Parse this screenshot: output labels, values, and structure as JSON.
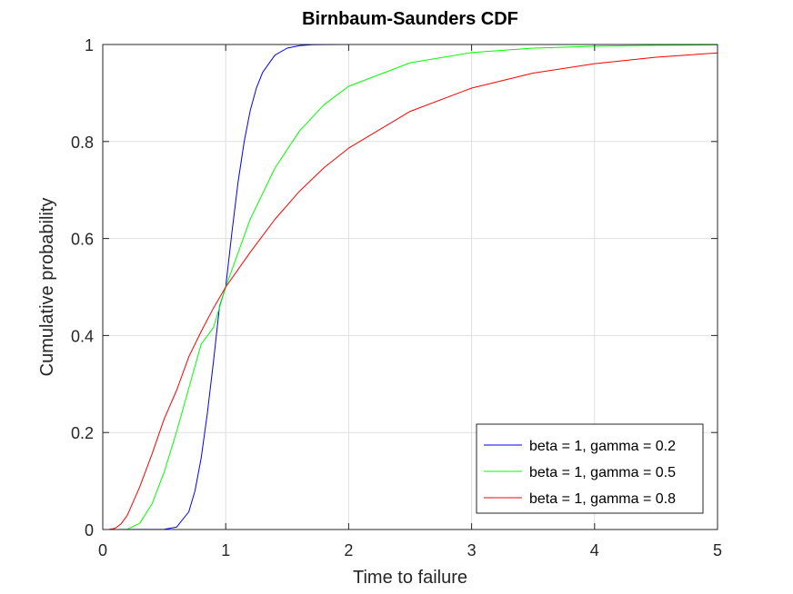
{
  "chart_data": {
    "type": "line",
    "title": "Birnbaum-Saunders CDF",
    "xlabel": "Time to failure",
    "ylabel": "Cumulative probability",
    "xlim": [
      0,
      5
    ],
    "ylim": [
      0,
      1
    ],
    "grid": true,
    "legend_position": "bottom-right",
    "x_ticks": [
      0,
      1,
      2,
      3,
      4,
      5
    ],
    "x_tick_labels": [
      "0",
      "1",
      "2",
      "3",
      "4",
      "5"
    ],
    "y_ticks": [
      0,
      0.2,
      0.4,
      0.6,
      0.8,
      1
    ],
    "y_tick_labels": [
      "0",
      "0.2",
      "0.4",
      "0.6",
      "0.8",
      "1"
    ],
    "series": [
      {
        "name": "beta = 1, gamma = 0.2",
        "color": "#0000ff",
        "x": [
          0,
          0.5,
          0.6,
          0.7,
          0.75,
          0.8,
          0.85,
          0.9,
          0.95,
          1.0,
          1.05,
          1.1,
          1.15,
          1.2,
          1.25,
          1.3,
          1.4,
          1.5,
          1.6,
          1.7,
          1.8,
          2.0,
          2.5,
          3.0,
          3.5,
          3.87
        ],
        "y": [
          0,
          0.0003,
          0.0049,
          0.0365,
          0.0796,
          0.1472,
          0.2382,
          0.3457,
          0.4602,
          0.5,
          0.6122,
          0.7154,
          0.7997,
          0.8643,
          0.9104,
          0.9425,
          0.9781,
          0.9925,
          0.9977,
          0.9994,
          0.9998,
          1.0,
          1.0,
          1.0,
          1.0,
          1.0
        ]
      },
      {
        "name": "beta = 1, gamma = 0.5",
        "color": "#00ff00",
        "x": [
          0,
          0.1,
          0.2,
          0.3,
          0.4,
          0.5,
          0.6,
          0.7,
          0.8,
          0.9,
          1.0,
          1.2,
          1.4,
          1.6,
          1.8,
          2.0,
          2.5,
          3.0,
          3.5,
          4.0,
          4.5,
          5.0
        ],
        "y": [
          0,
          0.0,
          0.0006,
          0.0128,
          0.0526,
          0.1187,
          0.2014,
          0.2912,
          0.3823,
          0.4163,
          0.5,
          0.64,
          0.7452,
          0.8217,
          0.876,
          0.9139,
          0.9624,
          0.9834,
          0.9925,
          0.9965,
          0.9984,
          0.9993
        ]
      },
      {
        "name": "beta = 1, gamma = 0.8",
        "color": "#ff0000",
        "x": [
          0,
          0.05,
          0.1,
          0.15,
          0.2,
          0.3,
          0.4,
          0.5,
          0.6,
          0.7,
          0.8,
          0.9,
          1.0,
          1.2,
          1.4,
          1.6,
          1.8,
          2.0,
          2.5,
          3.0,
          3.5,
          4.0,
          4.5,
          5.0
        ],
        "y": [
          0,
          0.0001,
          0.0024,
          0.0119,
          0.0294,
          0.0877,
          0.1552,
          0.2283,
          0.2865,
          0.356,
          0.4082,
          0.4566,
          0.5,
          0.5717,
          0.6395,
          0.6973,
          0.7462,
          0.7864,
          0.8622,
          0.9101,
          0.9411,
          0.9605,
          0.9737,
          0.9826
        ]
      }
    ]
  }
}
